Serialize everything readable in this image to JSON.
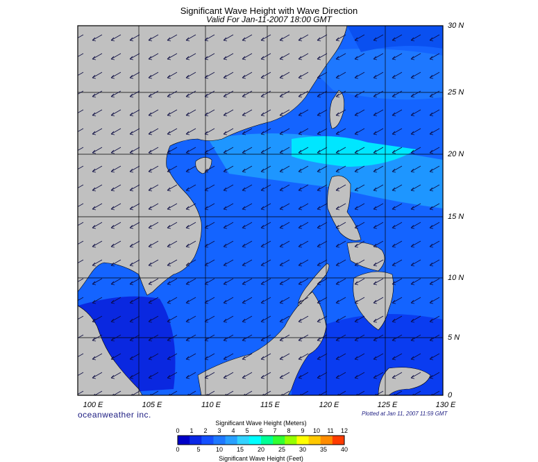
{
  "header": {
    "title": "Significant Wave Height with Wave Direction",
    "subtitle": "Valid For Jan-11-2007 18:00 GMT"
  },
  "axes": {
    "lat_labels": [
      "30 N",
      "25 N",
      "20 N",
      "15 N",
      "10 N",
      "5 N",
      "0"
    ],
    "lon_labels": [
      "100 E",
      "105 E",
      "110 E",
      "115 E",
      "120 E",
      "125 E",
      "130 E"
    ]
  },
  "footer": {
    "brand": "oceanweather inc.",
    "plotted": "Plotted at Jan 11, 2007 11:59 GMT"
  },
  "colorbar": {
    "title_meters": "Significant Wave Height (Meters)",
    "title_feet": "Significant Wave Height (Feet)",
    "meter_ticks": [
      "0",
      "1",
      "2",
      "3",
      "4",
      "5",
      "6",
      "7",
      "8",
      "9",
      "10",
      "11",
      "12"
    ],
    "feet_ticks": [
      "0",
      "5",
      "10",
      "15",
      "20",
      "25",
      "30",
      "35",
      "40"
    ],
    "colors": [
      "#0000c8",
      "#0a28e6",
      "#1450ff",
      "#1e78ff",
      "#28a0ff",
      "#32d2ff",
      "#00ffff",
      "#00ff96",
      "#32ff32",
      "#96ff00",
      "#ffff00",
      "#ffc800",
      "#ff8c00",
      "#ff3c00"
    ]
  },
  "map_colors": {
    "land": "#c0c0c0",
    "sea_deep": "#0a1ee0",
    "sea_mid": "#1464ff",
    "sea_light": "#1e96ff",
    "sea_bright": "#00e6ff",
    "grid": "#000000"
  }
}
